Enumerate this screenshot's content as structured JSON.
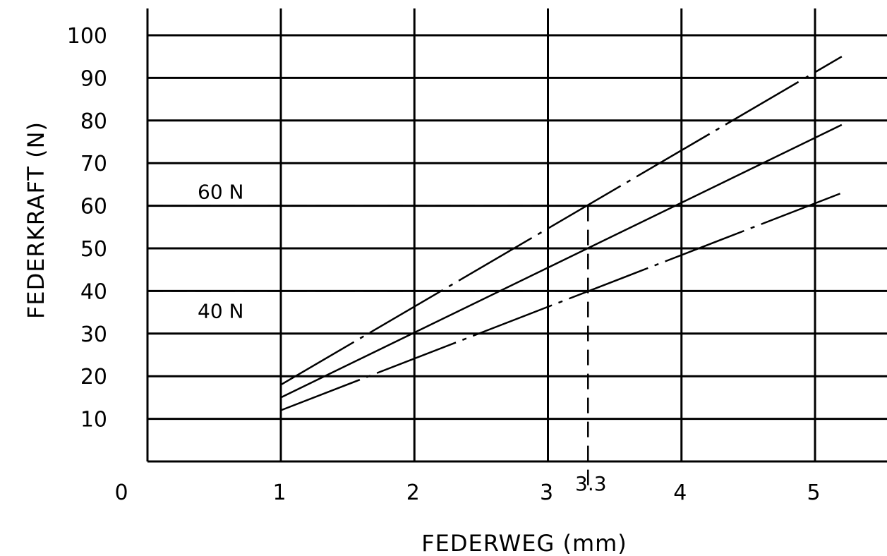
{
  "chart_data": {
    "type": "line",
    "xlabel": "FEDERWEG (mm)",
    "ylabel": "FEDERKRAFT (N)",
    "xlim": [
      0,
      5.5
    ],
    "ylim": [
      0,
      100
    ],
    "x_ticks": [
      "0",
      "1",
      "2",
      "3",
      "4",
      "5"
    ],
    "y_ticks": [
      "10",
      "20",
      "30",
      "40",
      "50",
      "60",
      "70",
      "80",
      "90",
      "100"
    ],
    "grid": true,
    "series": [
      {
        "style": "dash-dot",
        "x": [
          1,
          5.2
        ],
        "y": [
          18,
          95
        ]
      },
      {
        "style": "solid",
        "x": [
          1,
          5.2
        ],
        "y": [
          15,
          79
        ]
      },
      {
        "style": "dash-dot",
        "x": [
          1,
          5.2
        ],
        "y": [
          12,
          63
        ]
      }
    ],
    "annotations": [
      {
        "label": "60 N",
        "y": 60,
        "x_end": 3.3
      },
      {
        "label": "40 N",
        "y": 40,
        "x_end": 3.3
      },
      {
        "label": "3.3",
        "x": 3.3
      }
    ]
  }
}
